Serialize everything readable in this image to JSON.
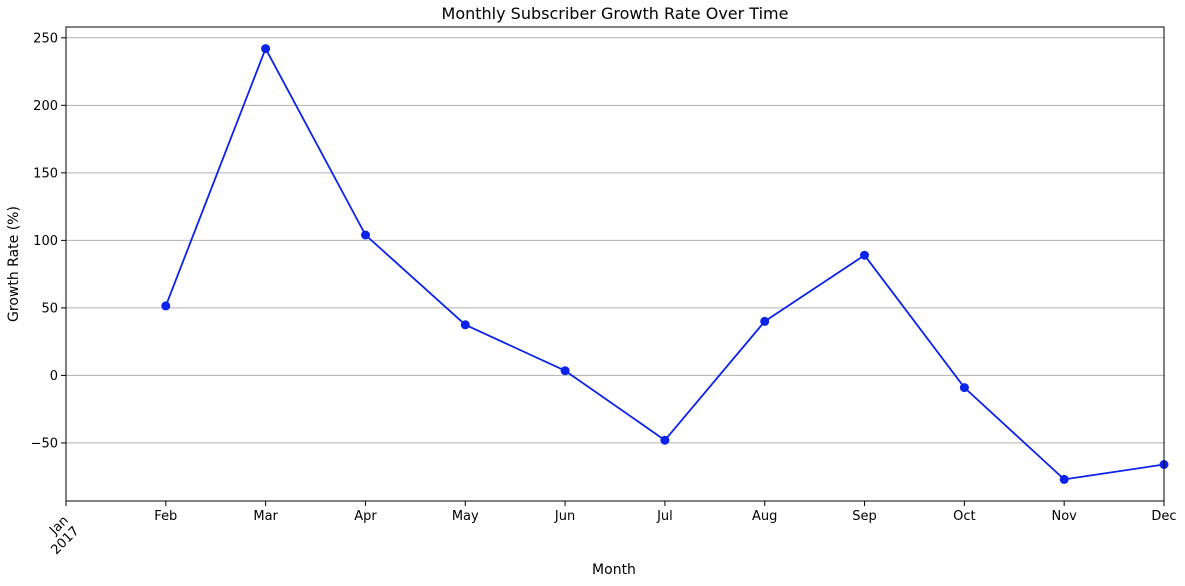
{
  "chart_data": {
    "type": "line",
    "title": "Monthly Subscriber Growth Rate Over Time",
    "xlabel": "Month",
    "ylabel": "Growth Rate (%)",
    "x_tick_labels": [
      "Jan\n2017",
      "Feb",
      "Mar",
      "Apr",
      "May",
      "Jun",
      "Jul",
      "Aug",
      "Sep",
      "Oct",
      "Nov",
      "Dec"
    ],
    "x_tick_months": [
      "2017-01",
      "2017-02",
      "2017-03",
      "2017-04",
      "2017-05",
      "2017-06",
      "2017-07",
      "2017-08",
      "2017-09",
      "2017-10",
      "2017-11",
      "2017-12"
    ],
    "xlim": [
      "2017-01",
      "2017-12"
    ],
    "ylim": [
      -93,
      258
    ],
    "y_ticks": [
      -50,
      0,
      50,
      100,
      150,
      200,
      250
    ],
    "y_tick_labels": [
      "−50",
      "0",
      "50",
      "100",
      "150",
      "200",
      "250"
    ],
    "grid": "y",
    "color": "#0b22e8",
    "series": [
      {
        "x": [
          "2017-02",
          "2017-03",
          "2017-04",
          "2017-05",
          "2017-06",
          "2017-07",
          "2017-08",
          "2017-09",
          "2017-10",
          "2017-11",
          "2017-12"
        ],
        "y": [
          51.5,
          242,
          104,
          37.5,
          3.5,
          -48,
          40,
          89,
          -9,
          -77,
          -66
        ]
      }
    ]
  }
}
